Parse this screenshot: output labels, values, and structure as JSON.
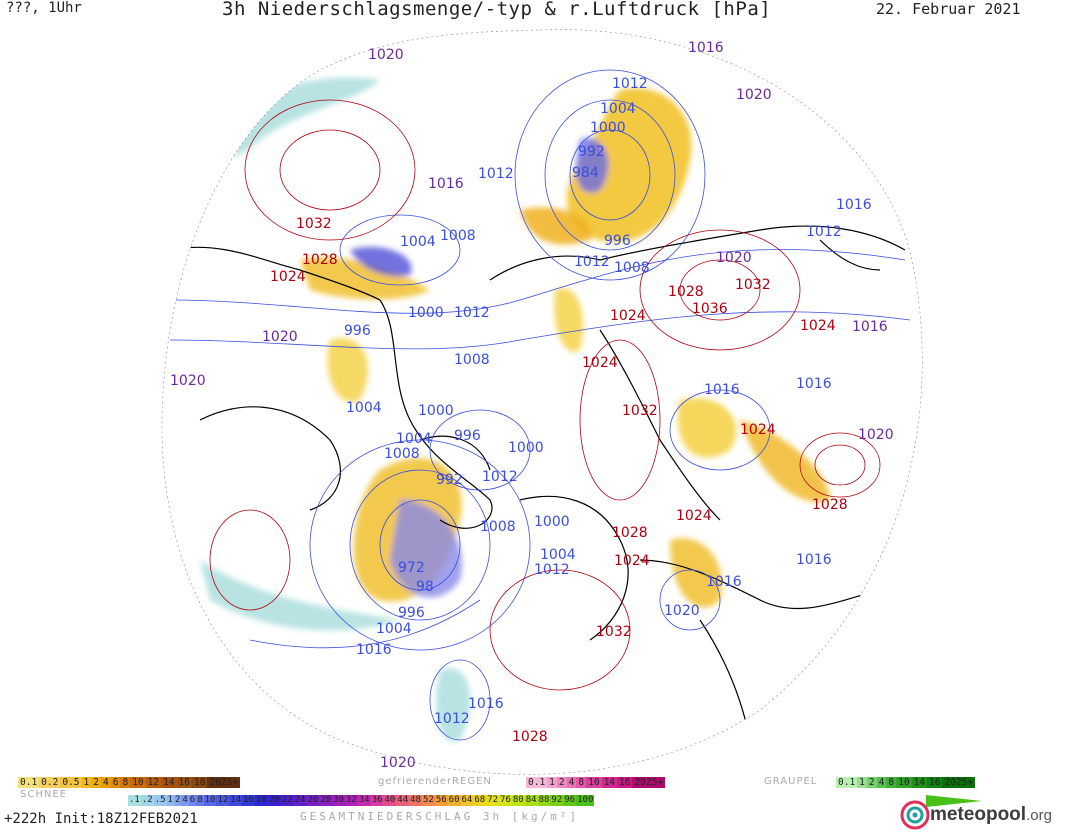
{
  "header": {
    "left": "???, 1Uhr",
    "title": "3h Niederschlagsmenge/-typ & r.Luftdruck [hPa]",
    "date": "22. Februar 2021"
  },
  "map_labels": [
    {
      "text": "1020",
      "type": "mid"
    },
    {
      "text": "1016",
      "type": "mid"
    },
    {
      "text": "1012",
      "type": "low"
    },
    {
      "text": "1004",
      "type": "low"
    },
    {
      "text": "1000",
      "type": "low"
    },
    {
      "text": "992",
      "type": "low"
    },
    {
      "text": "984",
      "type": "low"
    },
    {
      "text": "1020",
      "type": "mid"
    },
    {
      "text": "1016",
      "type": "low"
    },
    {
      "text": "1012",
      "type": "low"
    },
    {
      "text": "1032",
      "type": "high"
    },
    {
      "text": "1004",
      "type": "low"
    },
    {
      "text": "1008",
      "type": "low"
    },
    {
      "text": "996",
      "type": "low"
    },
    {
      "text": "1012",
      "type": "low"
    },
    {
      "text": "1008",
      "type": "low"
    },
    {
      "text": "1016",
      "type": "mid"
    },
    {
      "text": "1012",
      "type": "low"
    },
    {
      "text": "1020",
      "type": "mid"
    },
    {
      "text": "1028",
      "type": "high"
    },
    {
      "text": "1024",
      "type": "high"
    },
    {
      "text": "1028",
      "type": "high"
    },
    {
      "text": "1032",
      "type": "high"
    },
    {
      "text": "1036",
      "type": "high"
    },
    {
      "text": "1000",
      "type": "low"
    },
    {
      "text": "1012",
      "type": "low"
    },
    {
      "text": "1024",
      "type": "high"
    },
    {
      "text": "1024",
      "type": "high"
    },
    {
      "text": "1016",
      "type": "mid"
    },
    {
      "text": "996",
      "type": "low"
    },
    {
      "text": "1020",
      "type": "mid"
    },
    {
      "text": "1008",
      "type": "low"
    },
    {
      "text": "1024",
      "type": "high"
    },
    {
      "text": "1020",
      "type": "mid"
    },
    {
      "text": "1004",
      "type": "low"
    },
    {
      "text": "1000",
      "type": "low"
    },
    {
      "text": "1032",
      "type": "high"
    },
    {
      "text": "1016",
      "type": "low"
    },
    {
      "text": "1016",
      "type": "low"
    },
    {
      "text": "1004",
      "type": "low"
    },
    {
      "text": "996",
      "type": "low"
    },
    {
      "text": "1008",
      "type": "low"
    },
    {
      "text": "1000",
      "type": "low"
    },
    {
      "text": "1024",
      "type": "high"
    },
    {
      "text": "1020",
      "type": "mid"
    },
    {
      "text": "992",
      "type": "low"
    },
    {
      "text": "1012",
      "type": "low"
    },
    {
      "text": "1008",
      "type": "low"
    },
    {
      "text": "1000",
      "type": "low"
    },
    {
      "text": "1024",
      "type": "high"
    },
    {
      "text": "1028",
      "type": "high"
    },
    {
      "text": "1024",
      "type": "high"
    },
    {
      "text": "1004",
      "type": "low"
    },
    {
      "text": "1012",
      "type": "low"
    },
    {
      "text": "1028",
      "type": "high"
    },
    {
      "text": "972",
      "type": "low"
    },
    {
      "text": "98",
      "type": "low"
    },
    {
      "text": "1016",
      "type": "low"
    },
    {
      "text": "1016",
      "type": "low"
    },
    {
      "text": "996",
      "type": "low"
    },
    {
      "text": "1020",
      "type": "low"
    },
    {
      "text": "1004",
      "type": "low"
    },
    {
      "text": "1032",
      "type": "high"
    },
    {
      "text": "1016",
      "type": "low"
    },
    {
      "text": "1016",
      "type": "low"
    },
    {
      "text": "1012",
      "type": "low"
    },
    {
      "text": "1028",
      "type": "high"
    },
    {
      "text": "1020",
      "type": "mid"
    }
  ],
  "legend": {
    "rain_values": [
      "0.1",
      "0.2",
      "0.5",
      "1",
      "2",
      "4",
      "6",
      "8",
      "10",
      "12",
      "14",
      "16",
      "18",
      "2025+"
    ],
    "rain_colors": [
      "#f6e07a",
      "#f4d060",
      "#f2c440",
      "#f0b820",
      "#eeac10",
      "#e89a08",
      "#e08a06",
      "#d47a06",
      "#c86a08",
      "#b85c0c",
      "#a85010",
      "#985012",
      "#884814",
      "#603010"
    ],
    "freezing_title": "gefrierenderREGEN",
    "freezing_values": [
      "0.1",
      "1",
      "2",
      "4",
      "8",
      "10",
      "14",
      "16",
      "2025+"
    ],
    "freezing_colors": [
      "#f6b8d8",
      "#f2a0cc",
      "#ee88c0",
      "#e870b4",
      "#e058a8",
      "#d8409c",
      "#d02890",
      "#c81884",
      "#b00a70"
    ],
    "graupel_title": "GRAUPEL",
    "graupel_values": [
      "0.1",
      "1",
      "2",
      "4",
      "8",
      "10",
      "14",
      "16",
      "2025+"
    ],
    "graupel_colors": [
      "#b8f0b0",
      "#98e090",
      "#78d070",
      "#58c050",
      "#40b038",
      "#30a028",
      "#209018",
      "#108010",
      "#087008"
    ],
    "snow_title": "SCHNEE",
    "snow_values": [
      ".1",
      ".2",
      ".5",
      "1",
      "2",
      "4",
      "6",
      "8",
      "10",
      "12",
      "14",
      "16",
      "18",
      "20",
      "22",
      "24",
      "26",
      "28",
      "30",
      "32",
      "34",
      "36",
      "40",
      "44",
      "48",
      "52",
      "56",
      "60",
      "64",
      "68",
      "72",
      "76",
      "80",
      "84",
      "88",
      "92",
      "96",
      "100"
    ],
    "snow_colors": [
      "#a8e0e0",
      "#a0d4e8",
      "#98c8f0",
      "#90b8f4",
      "#88a8f4",
      "#7c98f0",
      "#7088ec",
      "#6478e8",
      "#5868e4",
      "#4c58e0",
      "#4048dc",
      "#3438d8",
      "#2828d4",
      "#3820d0",
      "#4c20cc",
      "#6020c8",
      "#7420c4",
      "#8820c0",
      "#9c20bc",
      "#b020b8",
      "#c42cb0",
      "#d83ca0",
      "#e44c8c",
      "#e86078",
      "#ec7464",
      "#f08850",
      "#f09c3c",
      "#f0b030",
      "#f0c428",
      "#ecd420",
      "#e4e018",
      "#d4e418",
      "#c0e418",
      "#a8e018",
      "#90d818",
      "#78d018",
      "#60c818",
      "#48c018"
    ],
    "total_title": "GESAMTNIEDERSCHLAG 3h [kg/m²]"
  },
  "footer": {
    "forecast": "+222h  Init:18Z12FEB2021",
    "logo": "meteopool",
    "logo_suffix": ".org"
  }
}
